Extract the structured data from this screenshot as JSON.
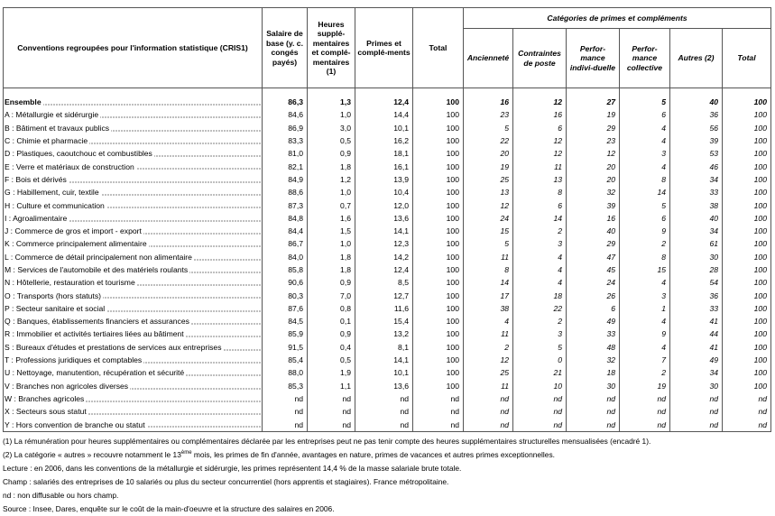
{
  "table": {
    "header": {
      "label": "Conventions regroupées pour l'information statistique (CRIS1)",
      "columns": [
        "Salaire de base (y. c. congés payés)",
        "Heures supplé-mentaires et complé-mentaires (1)",
        "Primes et complé-ments",
        "Total"
      ],
      "group": "Catégories de primes et compléments",
      "subcolumns": [
        "Ancienneté",
        "Contraintes de poste",
        "Perfor-mance indivi-duelle",
        "Perfor-mance collective",
        "Autres (2)",
        "Total"
      ]
    },
    "rows": [
      [
        "Ensemble",
        "86,3",
        "1,3",
        "12,4",
        "100",
        "16",
        "12",
        "27",
        "5",
        "40",
        "100"
      ],
      [
        "A : Métallurgie et sidérurgie",
        "84,6",
        "1,0",
        "14,4",
        "100",
        "23",
        "16",
        "19",
        "6",
        "36",
        "100"
      ],
      [
        "B : Bâtiment et travaux publics",
        "86,9",
        "3,0",
        "10,1",
        "100",
        "5",
        "6",
        "29",
        "4",
        "56",
        "100"
      ],
      [
        "C : Chimie et pharmacie",
        "83,3",
        "0,5",
        "16,2",
        "100",
        "22",
        "12",
        "23",
        "4",
        "39",
        "100"
      ],
      [
        "D : Plastiques, caoutchouc et combustibles",
        "81,0",
        "0,9",
        "18,1",
        "100",
        "20",
        "12",
        "12",
        "3",
        "53",
        "100"
      ],
      [
        "E : Verre et matériaux de construction",
        "82,1",
        "1,8",
        "16,1",
        "100",
        "19",
        "11",
        "20",
        "4",
        "46",
        "100"
      ],
      [
        "F : Bois et dérivés",
        "84,9",
        "1,2",
        "13,9",
        "100",
        "25",
        "13",
        "20",
        "8",
        "34",
        "100"
      ],
      [
        "G : Habillement, cuir, textile",
        "88,6",
        "1,0",
        "10,4",
        "100",
        "13",
        "8",
        "32",
        "14",
        "33",
        "100"
      ],
      [
        "H : Culture et communication",
        "87,3",
        "0,7",
        "12,0",
        "100",
        "12",
        "6",
        "39",
        "5",
        "38",
        "100"
      ],
      [
        "I : Agroalimentaire",
        "84,8",
        "1,6",
        "13,6",
        "100",
        "24",
        "14",
        "16",
        "6",
        "40",
        "100"
      ],
      [
        "J : Commerce de gros et import - export",
        "84,4",
        "1,5",
        "14,1",
        "100",
        "15",
        "2",
        "40",
        "9",
        "34",
        "100"
      ],
      [
        "K : Commerce principalement alimentaire",
        "86,7",
        "1,0",
        "12,3",
        "100",
        "5",
        "3",
        "29",
        "2",
        "61",
        "100"
      ],
      [
        "L : Commerce de détail principalement non alimentaire",
        "84,0",
        "1,8",
        "14,2",
        "100",
        "11",
        "4",
        "47",
        "8",
        "30",
        "100"
      ],
      [
        "M : Services de l'automobile et des matériels roulants",
        "85,8",
        "1,8",
        "12,4",
        "100",
        "8",
        "4",
        "45",
        "15",
        "28",
        "100"
      ],
      [
        "N : Hôtellerie, restauration et tourisme",
        "90,6",
        "0,9",
        "8,5",
        "100",
        "14",
        "4",
        "24",
        "4",
        "54",
        "100"
      ],
      [
        "O : Transports (hors statuts)",
        "80,3",
        "7,0",
        "12,7",
        "100",
        "17",
        "18",
        "26",
        "3",
        "36",
        "100"
      ],
      [
        "P : Secteur sanitaire et social",
        "87,6",
        "0,8",
        "11,6",
        "100",
        "38",
        "22",
        "6",
        "1",
        "33",
        "100"
      ],
      [
        "Q : Banques, établissements financiers et assurances",
        "84,5",
        "0,1",
        "15,4",
        "100",
        "4",
        "2",
        "49",
        "4",
        "41",
        "100"
      ],
      [
        "R : Immobilier et activités tertiaires liées au bâtiment",
        "85,9",
        "0,9",
        "13,2",
        "100",
        "11",
        "3",
        "33",
        "9",
        "44",
        "100"
      ],
      [
        "S : Bureaux d'études et prestations de services aux entreprises",
        "91,5",
        "0,4",
        "8,1",
        "100",
        "2",
        "5",
        "48",
        "4",
        "41",
        "100"
      ],
      [
        "T : Professions juridiques et comptables",
        "85,4",
        "0,5",
        "14,1",
        "100",
        "12",
        "0",
        "32",
        "7",
        "49",
        "100"
      ],
      [
        "U : Nettoyage, manutention, récupération et sécurité",
        "88,0",
        "1,9",
        "10,1",
        "100",
        "25",
        "21",
        "18",
        "2",
        "34",
        "100"
      ],
      [
        "V : Branches non agricoles diverses",
        "85,3",
        "1,1",
        "13,6",
        "100",
        "11",
        "10",
        "30",
        "19",
        "30",
        "100"
      ],
      [
        "W : Branches agricoles",
        "nd",
        "nd",
        "nd",
        "nd",
        "nd",
        "nd",
        "nd",
        "nd",
        "nd",
        "nd"
      ],
      [
        "X : Secteurs sous statut",
        "nd",
        "nd",
        "nd",
        "nd",
        "nd",
        "nd",
        "nd",
        "nd",
        "nd",
        "nd"
      ],
      [
        "Y : Hors convention de branche ou statut",
        "nd",
        "nd",
        "nd",
        "nd",
        "nd",
        "nd",
        "nd",
        "nd",
        "nd",
        "nd"
      ]
    ]
  },
  "notes": {
    "n1": "(1) La rémunération pour heures supplémentaires ou complémentaires déclarée par les entreprises peut ne pas tenir compte des heures supplémentaires structurelles mensualisées (encadré 1).",
    "n2a": "(2) La catégorie « autres » recouvre notamment le 13",
    "n2sup": "ème",
    "n2b": " mois, les primes de fin d'année, avantages en nature, primes de vacances et autres primes exceptionnelles.",
    "reading": "Lecture : en 2006, dans les conventions de la métallurgie et sidérurgie, les primes représentent 14,4 % de la masse salariale brute totale.",
    "scope": "Champ : salariés des entreprises de 10 salariés ou plus du secteur concurrentiel (hors apprentis et stagiaires). France métropolitaine.",
    "nd": "nd : non diffusable ou hors champ.",
    "source": "Source : Insee, Dares, enquête sur le coût de la main-d'oeuvre et la structure des salaires en 2006."
  }
}
